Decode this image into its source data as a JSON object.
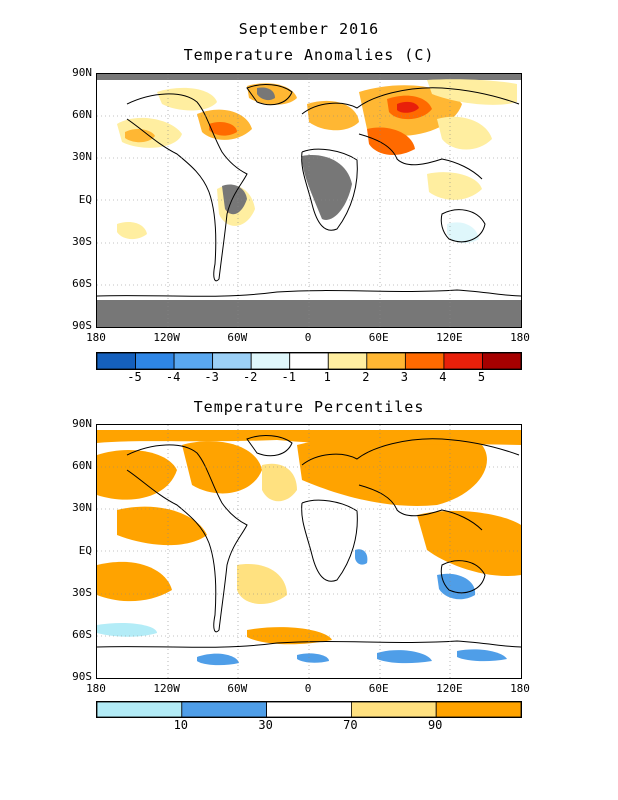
{
  "page": {
    "title": "September 2016",
    "subtitle_top": "Temperature Anomalies (C)",
    "subtitle_bottom": "Temperature Percentiles"
  },
  "axes": {
    "lat_labels": [
      "90N",
      "60N",
      "30N",
      "EQ",
      "30S",
      "60S",
      "90S"
    ],
    "lon_labels": [
      "180",
      "120W",
      "60W",
      "0",
      "60E",
      "120E",
      "180"
    ]
  },
  "anomaly_colorbar": {
    "colors": [
      "#1560bd",
      "#2e86e6",
      "#5aa8f0",
      "#9bd0f7",
      "#dff7fb",
      "#ffffff",
      "#ffeea0",
      "#ffb733",
      "#ff6a00",
      "#e8200a",
      "#a50000"
    ],
    "labels": [
      "-5",
      "-4",
      "-3",
      "-2",
      "-1",
      "1",
      "2",
      "3",
      "4",
      "5"
    ]
  },
  "percentile_colorbar": {
    "colors": [
      "#b3ecf7",
      "#4f9ee8",
      "#ffffff",
      "#ffe180",
      "#ffa300"
    ],
    "labels": [
      "10",
      "30",
      "70",
      "90"
    ]
  },
  "map_colors": {
    "missing": "#777777",
    "coast": "#000000"
  }
}
